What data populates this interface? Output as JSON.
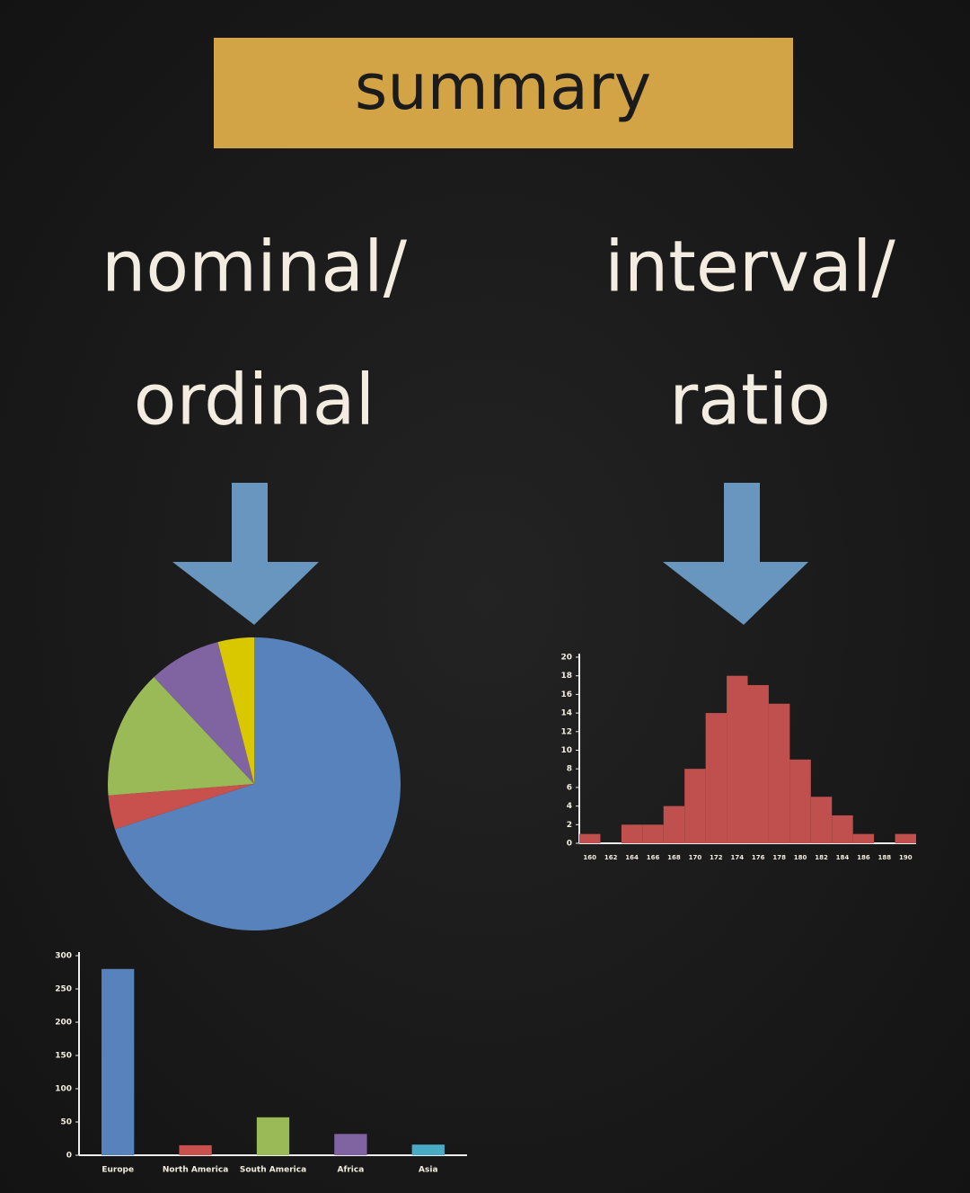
{
  "title": "summary",
  "headings": {
    "left": [
      "nominal/",
      "ordinal"
    ],
    "right": [
      "interval/",
      "ratio"
    ]
  },
  "chart_data": [
    {
      "type": "pie",
      "values": [
        280,
        15,
        57,
        32,
        16
      ],
      "colors": [
        "#5882bb",
        "#c8504d",
        "#9aba58",
        "#8063a1",
        "#d9c800"
      ]
    },
    {
      "type": "bar",
      "categories": [
        "Europe",
        "North America",
        "South America",
        "Africa",
        "Asia"
      ],
      "values": [
        280,
        15,
        57,
        32,
        16
      ],
      "colors": [
        "#5882bb",
        "#c8504d",
        "#9aba58",
        "#8063a1",
        "#4aabc5"
      ],
      "ylim": [
        0,
        300
      ],
      "yticks": [
        0,
        50,
        100,
        150,
        200,
        250,
        300
      ]
    },
    {
      "type": "bar",
      "categories": [
        "160",
        "162",
        "164",
        "166",
        "168",
        "170",
        "172",
        "174",
        "176",
        "178",
        "180",
        "182",
        "184",
        "186",
        "188",
        "190"
      ],
      "values": [
        1,
        0,
        2,
        2,
        4,
        8,
        14,
        18,
        17,
        15,
        9,
        5,
        3,
        1,
        0,
        1
      ],
      "color": "#c0504d",
      "gapless": true,
      "ylim": [
        0,
        20
      ],
      "yticks": [
        0,
        2,
        4,
        6,
        8,
        10,
        12,
        14,
        16,
        18,
        20
      ]
    }
  ]
}
